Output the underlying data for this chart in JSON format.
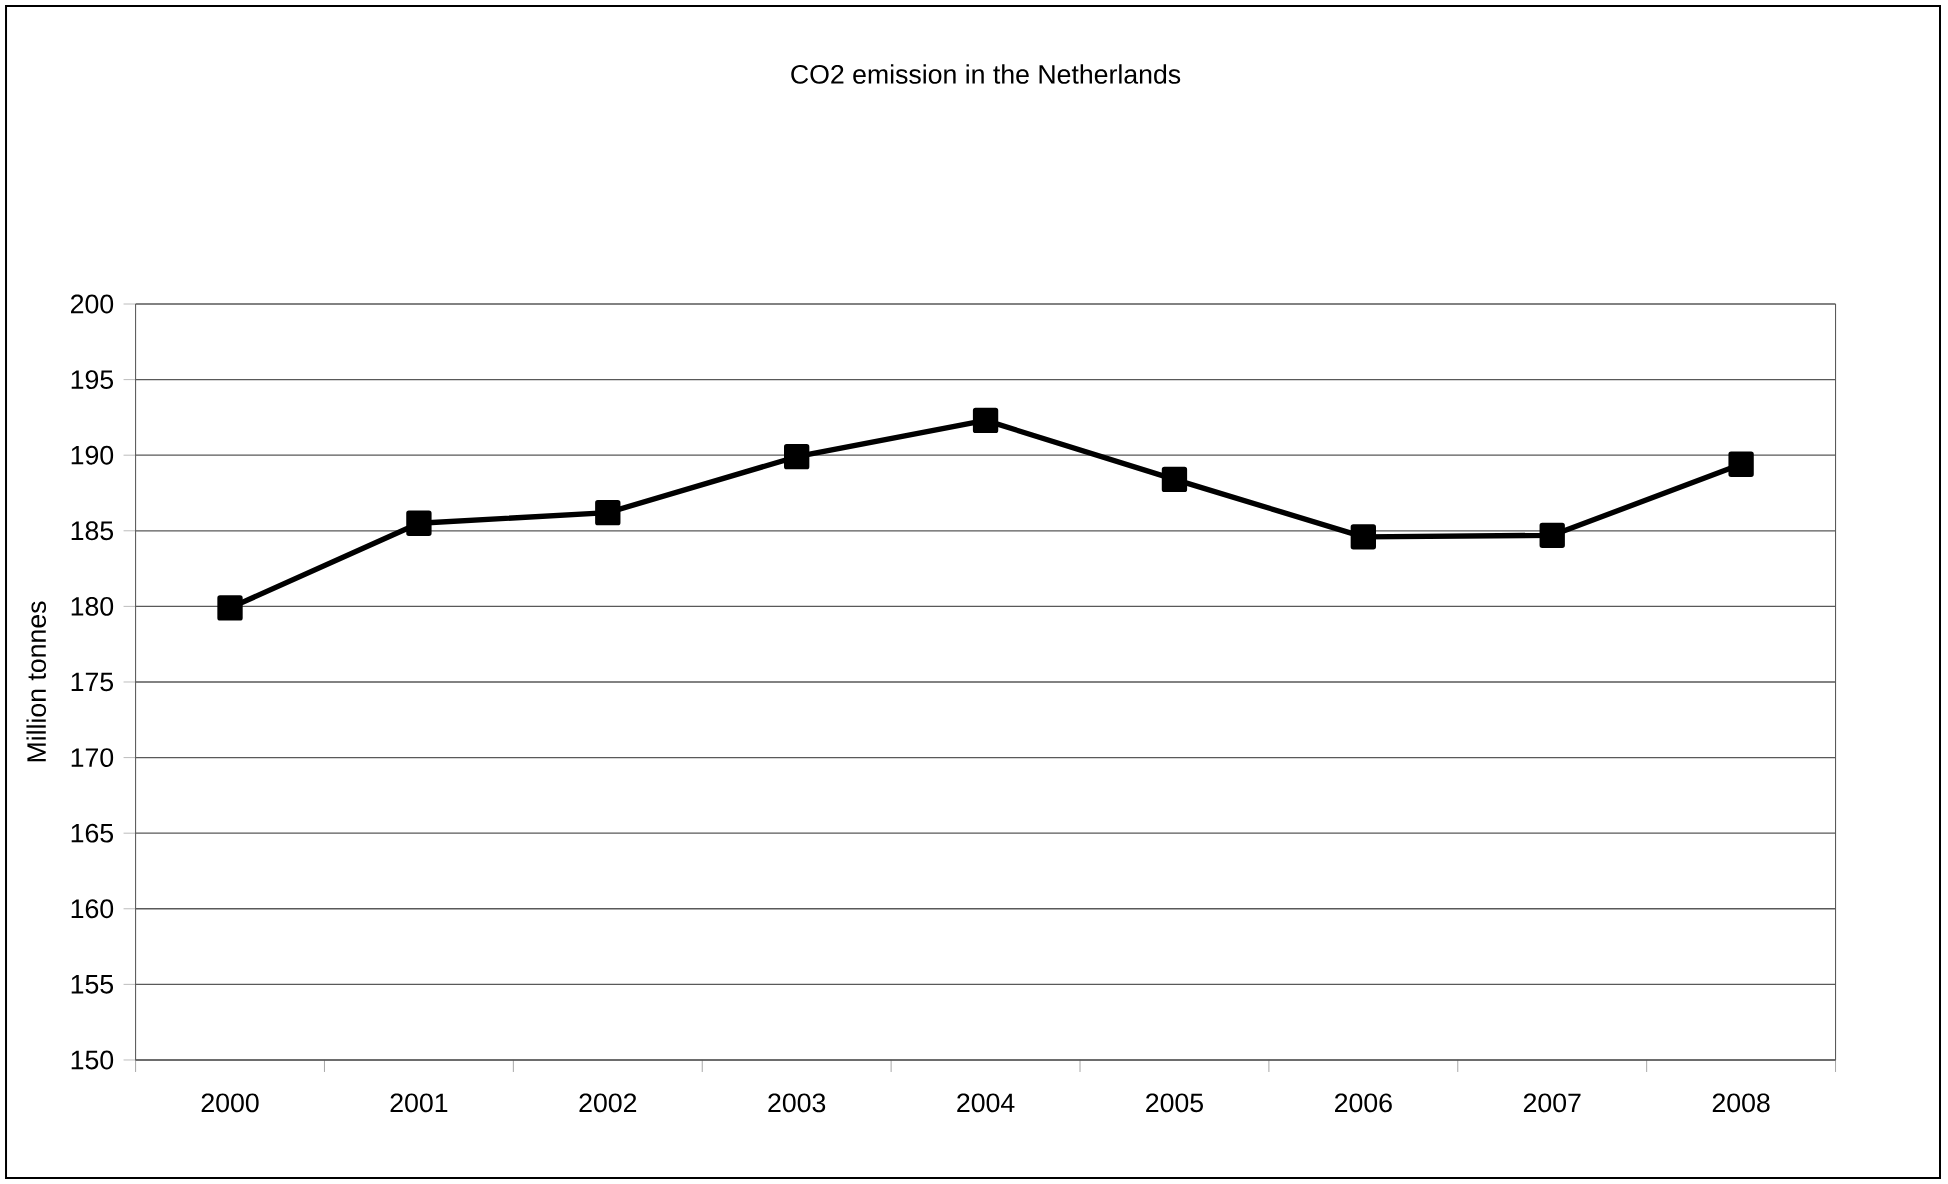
{
  "chart_data": {
    "type": "line",
    "title": "CO2 emission in the Netherlands",
    "ylabel": "Million tonnes",
    "categories": [
      "2000",
      "2001",
      "2002",
      "2003",
      "2004",
      "2005",
      "2006",
      "2007",
      "2008"
    ],
    "series": [
      {
        "color": "#000000",
        "values": [
          179.9,
          185.5,
          186.2,
          189.9,
          192.3,
          188.4,
          184.6,
          184.7,
          189.4
        ]
      }
    ],
    "ylim": [
      150,
      200
    ],
    "yticks": [
      150,
      155,
      160,
      165,
      170,
      175,
      180,
      185,
      190,
      195,
      200
    ],
    "grid": "y",
    "marker": "square",
    "line_style": "solid"
  }
}
